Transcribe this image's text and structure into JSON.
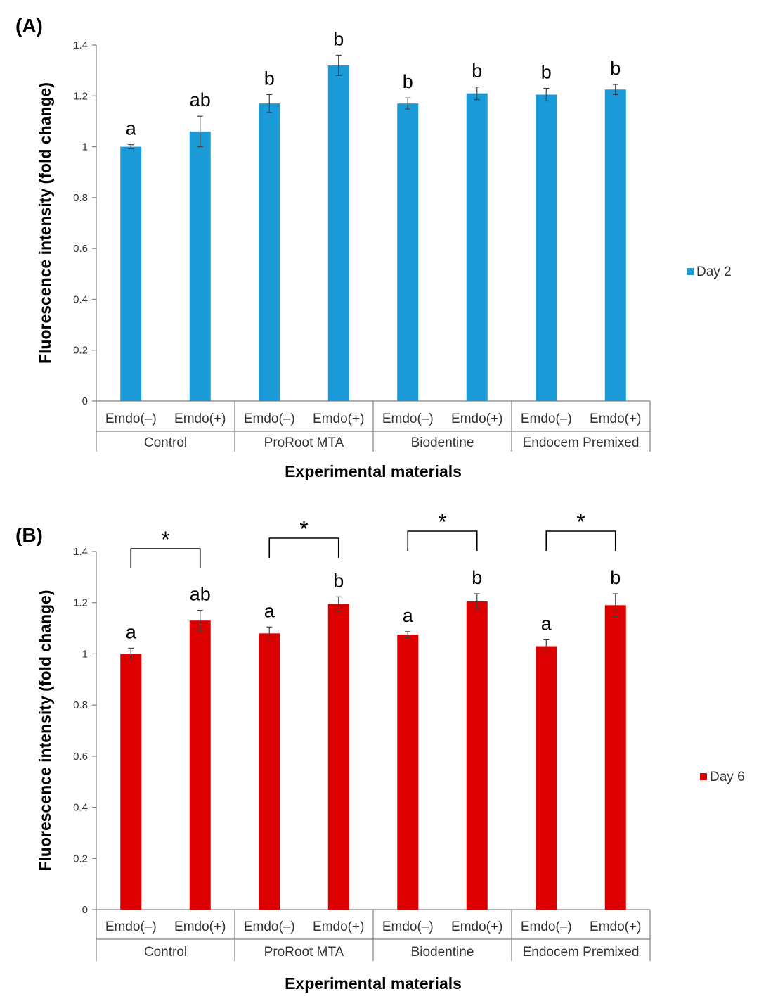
{
  "chart_data": [
    {
      "type": "bar",
      "panel_label": "(A)",
      "categories": [
        "Emdo(–)",
        "Emdo(+)",
        "Emdo(–)",
        "Emdo(+)",
        "Emdo(–)",
        "Emdo(+)",
        "Emdo(–)",
        "Emdo(+)"
      ],
      "groups": [
        "Control",
        "ProRoot MTA",
        "Biodentine",
        "Endocem Premixed"
      ],
      "series": [
        {
          "name": "Day 2",
          "color": "#1a9bd7",
          "values": [
            1.0,
            1.06,
            1.17,
            1.32,
            1.17,
            1.21,
            1.205,
            1.225
          ],
          "errors": [
            0.008,
            0.06,
            0.035,
            0.04,
            0.022,
            0.025,
            0.025,
            0.02
          ],
          "significance": [
            "a",
            "ab",
            "b",
            "b",
            "b",
            "b",
            "b",
            "b"
          ]
        }
      ],
      "pairwise_stars": [],
      "xlabel": "Experimental materials",
      "ylabel": "Fluorescence intensity (fold change)",
      "ylim": [
        0,
        1.4
      ],
      "yticks": [
        0,
        0.2,
        0.4,
        0.6,
        0.8,
        1,
        1.2,
        1.4
      ],
      "ytick_labels": [
        "0",
        "0.2",
        "0.4",
        "0.6",
        "0.8",
        "1",
        "1.2",
        "1.4"
      ],
      "legend": "right",
      "grid": false
    },
    {
      "type": "bar",
      "panel_label": "(B)",
      "categories": [
        "Emdo(–)",
        "Emdo(+)",
        "Emdo(–)",
        "Emdo(+)",
        "Emdo(–)",
        "Emdo(+)",
        "Emdo(–)",
        "Emdo(+)"
      ],
      "groups": [
        "Control",
        "ProRoot MTA",
        "Biodentine",
        "Endocem Premixed"
      ],
      "series": [
        {
          "name": "Day 6",
          "color": "#dd0000",
          "values": [
            1.0,
            1.13,
            1.08,
            1.195,
            1.075,
            1.205,
            1.03,
            1.19
          ],
          "errors": [
            0.022,
            0.04,
            0.025,
            0.028,
            0.012,
            0.03,
            0.025,
            0.045
          ],
          "significance": [
            "a",
            "ab",
            "a",
            "b",
            "a",
            "b",
            "a",
            "b"
          ]
        }
      ],
      "pairwise_stars": [
        "*",
        "*",
        "*",
        "*"
      ],
      "xlabel": "Experimental materials",
      "ylabel": "Fluorescence intensity (fold change)",
      "ylim": [
        0,
        1.4
      ],
      "yticks": [
        0,
        0.2,
        0.4,
        0.6,
        0.8,
        1,
        1.2,
        1.4
      ],
      "ytick_labels": [
        "0",
        "0.2",
        "0.4",
        "0.6",
        "0.8",
        "1",
        "1.2",
        "1.4"
      ],
      "legend": "right",
      "grid": false
    }
  ]
}
